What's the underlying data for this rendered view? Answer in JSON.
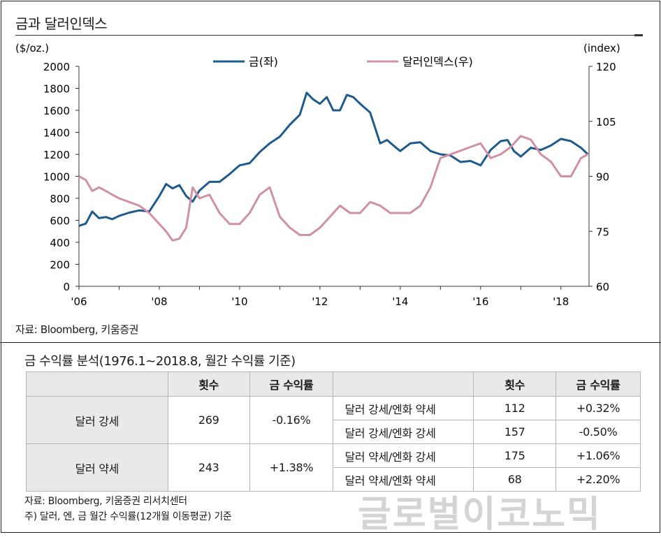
{
  "chart_title": "금과 달러인덱스",
  "chart_data": {
    "type": "line",
    "title": "금과 달러인덱스",
    "left_axis": {
      "unit": "($/oz.)",
      "range": [
        0,
        2000
      ],
      "ticks": [
        "0",
        "200",
        "400",
        "600",
        "800",
        "1000",
        "1200",
        "1400",
        "1600",
        "1800",
        "2000"
      ]
    },
    "right_axis": {
      "unit": "(index)",
      "range": [
        60,
        120
      ],
      "ticks": [
        "60",
        "75",
        "90",
        "105",
        "120"
      ]
    },
    "x_axis": {
      "range": [
        2006,
        2018.7
      ],
      "ticks": [
        {
          "x": 2006,
          "label": "'06"
        },
        {
          "x": 2008,
          "label": "'08"
        },
        {
          "x": 2010,
          "label": "'10"
        },
        {
          "x": 2012,
          "label": "'12"
        },
        {
          "x": 2014,
          "label": "'14"
        },
        {
          "x": 2016,
          "label": "'16"
        },
        {
          "x": 2018,
          "label": "'18"
        }
      ]
    },
    "legend_position": "top-center",
    "series": [
      {
        "name": "금(좌)",
        "axis": "left",
        "color": "#1f5a8c",
        "points": [
          [
            2006.0,
            550
          ],
          [
            2006.17,
            570
          ],
          [
            2006.33,
            680
          ],
          [
            2006.5,
            620
          ],
          [
            2006.67,
            630
          ],
          [
            2006.83,
            610
          ],
          [
            2007.0,
            640
          ],
          [
            2007.25,
            670
          ],
          [
            2007.5,
            690
          ],
          [
            2007.75,
            680
          ],
          [
            2008.0,
            820
          ],
          [
            2008.17,
            930
          ],
          [
            2008.33,
            890
          ],
          [
            2008.5,
            920
          ],
          [
            2008.67,
            820
          ],
          [
            2008.83,
            770
          ],
          [
            2009.0,
            870
          ],
          [
            2009.25,
            950
          ],
          [
            2009.5,
            950
          ],
          [
            2009.75,
            1020
          ],
          [
            2010.0,
            1100
          ],
          [
            2010.25,
            1120
          ],
          [
            2010.5,
            1220
          ],
          [
            2010.75,
            1300
          ],
          [
            2011.0,
            1360
          ],
          [
            2011.25,
            1470
          ],
          [
            2011.5,
            1560
          ],
          [
            2011.67,
            1760
          ],
          [
            2011.83,
            1700
          ],
          [
            2012.0,
            1660
          ],
          [
            2012.17,
            1720
          ],
          [
            2012.33,
            1600
          ],
          [
            2012.5,
            1600
          ],
          [
            2012.67,
            1740
          ],
          [
            2012.83,
            1720
          ],
          [
            2013.0,
            1660
          ],
          [
            2013.25,
            1580
          ],
          [
            2013.5,
            1300
          ],
          [
            2013.67,
            1330
          ],
          [
            2013.83,
            1280
          ],
          [
            2014.0,
            1230
          ],
          [
            2014.25,
            1300
          ],
          [
            2014.5,
            1310
          ],
          [
            2014.75,
            1230
          ],
          [
            2015.0,
            1200
          ],
          [
            2015.25,
            1190
          ],
          [
            2015.5,
            1130
          ],
          [
            2015.75,
            1140
          ],
          [
            2016.0,
            1100
          ],
          [
            2016.25,
            1240
          ],
          [
            2016.5,
            1320
          ],
          [
            2016.67,
            1330
          ],
          [
            2016.83,
            1230
          ],
          [
            2017.0,
            1180
          ],
          [
            2017.25,
            1260
          ],
          [
            2017.5,
            1240
          ],
          [
            2017.75,
            1280
          ],
          [
            2018.0,
            1340
          ],
          [
            2018.25,
            1320
          ],
          [
            2018.5,
            1260
          ],
          [
            2018.67,
            1200
          ]
        ]
      },
      {
        "name": "달러인덱스(우)",
        "axis": "right",
        "color": "#cf90a8",
        "points": [
          [
            2006.0,
            90
          ],
          [
            2006.17,
            89
          ],
          [
            2006.33,
            86
          ],
          [
            2006.5,
            87
          ],
          [
            2006.67,
            86
          ],
          [
            2006.83,
            85
          ],
          [
            2007.0,
            84
          ],
          [
            2007.25,
            83
          ],
          [
            2007.5,
            82
          ],
          [
            2007.75,
            80
          ],
          [
            2008.0,
            77
          ],
          [
            2008.17,
            75
          ],
          [
            2008.33,
            72.5
          ],
          [
            2008.5,
            73
          ],
          [
            2008.67,
            76
          ],
          [
            2008.83,
            87
          ],
          [
            2009.0,
            84
          ],
          [
            2009.25,
            85
          ],
          [
            2009.5,
            80
          ],
          [
            2009.75,
            77
          ],
          [
            2010.0,
            77
          ],
          [
            2010.25,
            80
          ],
          [
            2010.5,
            85
          ],
          [
            2010.75,
            87
          ],
          [
            2011.0,
            79
          ],
          [
            2011.25,
            76
          ],
          [
            2011.5,
            74
          ],
          [
            2011.75,
            74
          ],
          [
            2012.0,
            76
          ],
          [
            2012.25,
            79
          ],
          [
            2012.5,
            82
          ],
          [
            2012.75,
            80
          ],
          [
            2013.0,
            80
          ],
          [
            2013.25,
            83
          ],
          [
            2013.5,
            82
          ],
          [
            2013.75,
            80
          ],
          [
            2014.0,
            80
          ],
          [
            2014.25,
            80
          ],
          [
            2014.5,
            82
          ],
          [
            2014.75,
            87
          ],
          [
            2015.0,
            95
          ],
          [
            2015.25,
            96
          ],
          [
            2015.5,
            97
          ],
          [
            2015.75,
            98
          ],
          [
            2016.0,
            99
          ],
          [
            2016.25,
            95
          ],
          [
            2016.5,
            96
          ],
          [
            2016.75,
            98
          ],
          [
            2017.0,
            101
          ],
          [
            2017.25,
            100
          ],
          [
            2017.5,
            96
          ],
          [
            2017.75,
            94
          ],
          [
            2018.0,
            90
          ],
          [
            2018.25,
            90
          ],
          [
            2018.5,
            95
          ],
          [
            2018.67,
            96
          ]
        ]
      }
    ]
  },
  "source_top": "자료: Bloomberg, 키움증권",
  "table_title": "금 수익률 분석(1976.1~2018.8, 월간 수익률 기준)",
  "table": {
    "headers": [
      "",
      "횟수",
      "금 수익률",
      "",
      "횟수",
      "금 수익률"
    ],
    "rows": [
      {
        "label": "달러 강세",
        "count": "269",
        "return": "-0.16%",
        "subs": [
          {
            "label": "달러 강세/엔화 약세",
            "count": "112",
            "return": "+0.32%"
          },
          {
            "label": "달러 강세/엔화 강세",
            "count": "157",
            "return": "-0.50%"
          }
        ]
      },
      {
        "label": "달러 약세",
        "count": "243",
        "return": "+1.38%",
        "subs": [
          {
            "label": "달러 약세/엔화 강세",
            "count": "175",
            "return": "+1.06%"
          },
          {
            "label": "달러 약세/엔화 약세",
            "count": "68",
            "return": "+2.20%"
          }
        ]
      }
    ]
  },
  "note_source": "자료: Bloomberg, 키움증권 리서치센터",
  "note_footer": "주) 달러, 엔, 금 월간 수익률(12개월 이동평균) 기준",
  "watermark": "글로벌이코노믹"
}
